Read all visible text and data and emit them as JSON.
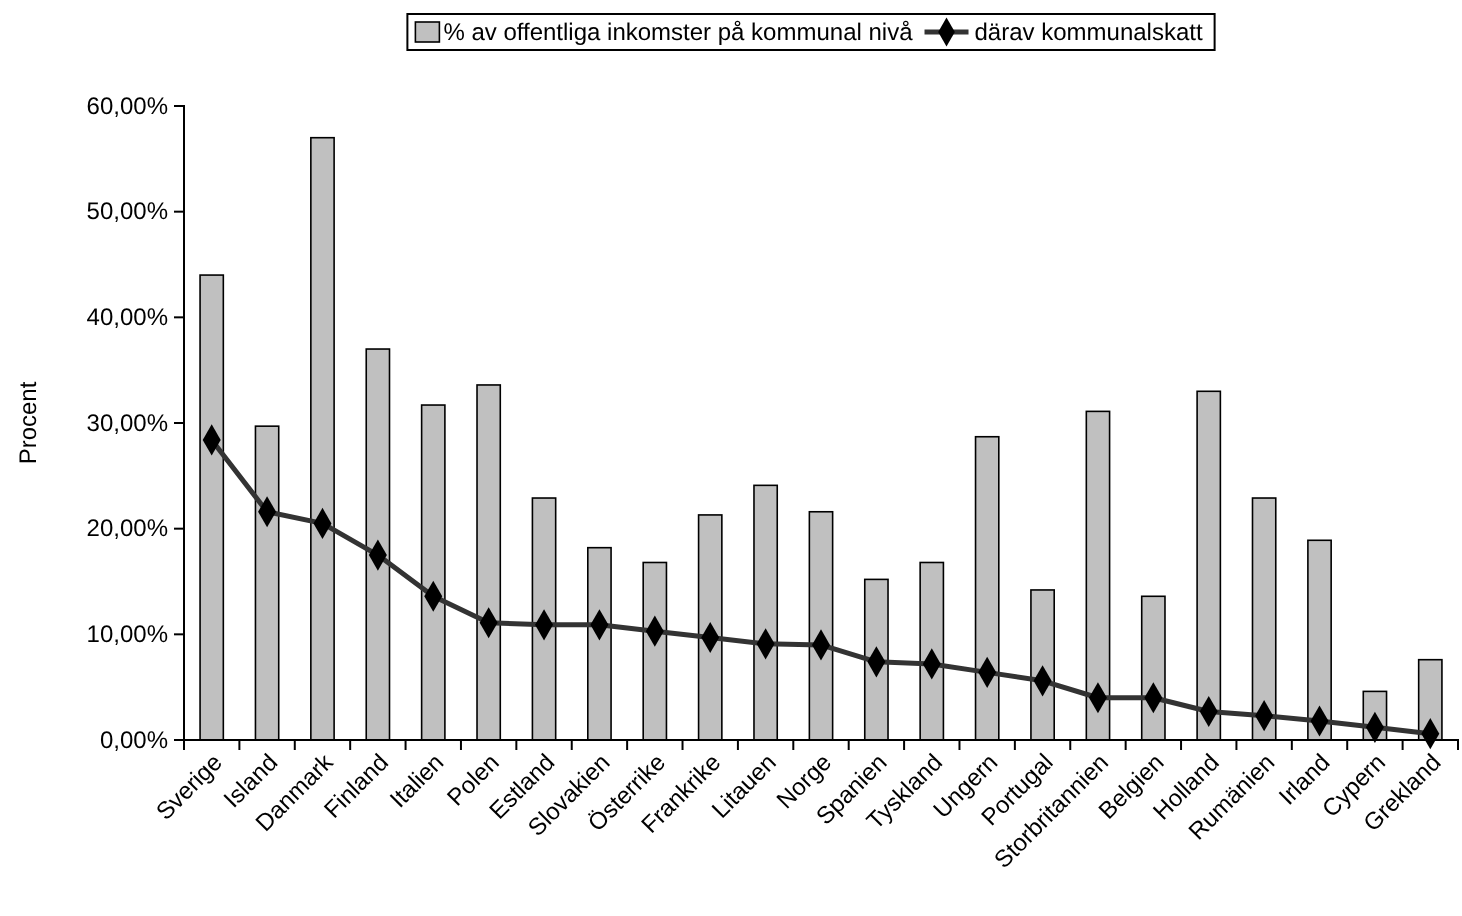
{
  "chart_data": {
    "type": "bar",
    "ylabel": "Procent",
    "categories": [
      "Sverige",
      "Island",
      "Danmark",
      "Finland",
      "Italien",
      "Polen",
      "Estland",
      "Slovakien",
      "Österrike",
      "Frankrike",
      "Litauen",
      "Norge",
      "Spanien",
      "Tyskland",
      "Ungern",
      "Portugal",
      "Storbritannien",
      "Belgien",
      "Holland",
      "Rumänien",
      "Irland",
      "Cypern",
      "Grekland"
    ],
    "series": [
      {
        "name": "% av offentliga inkomster på kommunal nivå",
        "color": "#c0c0c0",
        "values": [
          44.0,
          29.7,
          57.0,
          37.0,
          31.7,
          33.6,
          22.9,
          18.2,
          16.8,
          21.3,
          24.1,
          21.6,
          15.2,
          16.8,
          28.7,
          14.2,
          31.1,
          13.6,
          33.0,
          22.9,
          18.9,
          4.6,
          7.6
        ]
      },
      {
        "name": "därav kommunalskatt",
        "type": "line",
        "color": "#333333",
        "marker": "diamond",
        "values": [
          28.4,
          21.6,
          20.5,
          17.5,
          13.6,
          11.1,
          10.9,
          10.9,
          10.3,
          9.7,
          9.1,
          9.0,
          7.4,
          7.2,
          6.4,
          5.6,
          4.0,
          4.0,
          2.7,
          2.3,
          1.8,
          1.2,
          0.6
        ]
      }
    ],
    "ylim": [
      0,
      60
    ],
    "yticks": [
      {
        "value": 0,
        "label": "0,00%"
      },
      {
        "value": 10,
        "label": "10,00%"
      },
      {
        "value": 20,
        "label": "20,00%"
      },
      {
        "value": 30,
        "label": "30,00%"
      },
      {
        "value": 40,
        "label": "40,00%"
      },
      {
        "value": 50,
        "label": "50,00%"
      },
      {
        "value": 60,
        "label": "60,00%"
      }
    ],
    "grid": false,
    "legend": "top"
  }
}
